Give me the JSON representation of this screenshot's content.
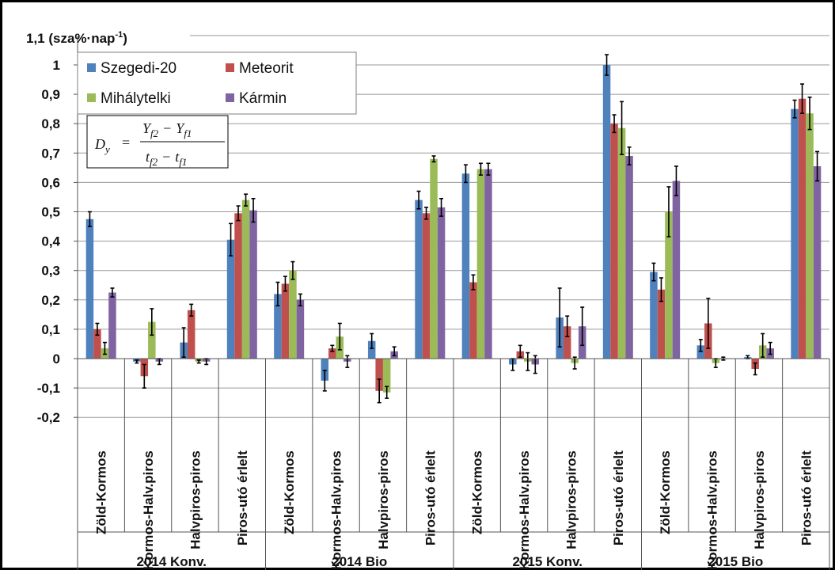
{
  "chart_data": {
    "type": "bar",
    "ylabel": "1,1 (sza%·nap",
    "ylabel_superscript": "-1",
    "ylabel_close": ")",
    "ylim": [
      -0.2,
      1.1
    ],
    "yticks": [
      -0.2,
      -0.1,
      0,
      0.1,
      0.2,
      0.3,
      0.4,
      0.5,
      0.6,
      0.7,
      0.8,
      0.9,
      1
    ],
    "ytick_labels": [
      "-0,2",
      "-0,1",
      "0",
      "0,1",
      "0,2",
      "0,3",
      "0,4",
      "0,5",
      "0,6",
      "0,7",
      "0,8",
      "0,9",
      "1"
    ],
    "grid": true,
    "legend_position": "top-left",
    "groups": [
      {
        "label": "2014 Konv.",
        "categories": [
          "Zöld-Kormos",
          "Kormos-Halv.piros",
          "Halvpiros-piros",
          "Piros-utó érlelt"
        ]
      },
      {
        "label": "2014 Bio",
        "categories": [
          "Zöld-Kormos",
          "Kormos-Halv.piros",
          "Halvpiros-piros",
          "Piros-utó érlelt"
        ]
      },
      {
        "label": "2015 Konv.",
        "categories": [
          "Zöld-Kormos",
          "Kormos-Halv.piros",
          "Halvpiros-piros",
          "Piros-utó érlelt"
        ]
      },
      {
        "label": "2015 Bio",
        "categories": [
          "Zöld-Kormos",
          "Kormos-Halv.piros",
          "Halvpiros-piros",
          "Piros-utó érlelt"
        ]
      }
    ],
    "series": [
      {
        "name": "Szegedi-20",
        "color": "#4f81bd",
        "values": [
          0.475,
          -0.01,
          0.055,
          0.405,
          0.22,
          -0.075,
          0.06,
          0.54,
          0.63,
          -0.02,
          0.14,
          1.0,
          0.295,
          0.045,
          0.005,
          0.85
        ],
        "errors": [
          0.025,
          0.005,
          0.05,
          0.055,
          0.04,
          0.035,
          0.025,
          0.03,
          0.03,
          0.02,
          0.1,
          0.035,
          0.03,
          0.02,
          0.005,
          0.03
        ]
      },
      {
        "name": "Meteorit",
        "color": "#c0504d",
        "values": [
          0.1,
          -0.06,
          0.165,
          0.495,
          0.255,
          0.035,
          -0.11,
          0.495,
          0.26,
          0.025,
          0.11,
          0.8,
          0.235,
          0.12,
          -0.035,
          0.885
        ],
        "errors": [
          0.02,
          0.04,
          0.02,
          0.025,
          0.025,
          0.01,
          0.04,
          0.02,
          0.025,
          0.02,
          0.035,
          0.03,
          0.04,
          0.085,
          0.02,
          0.05
        ]
      },
      {
        "name": "Mihálytelki",
        "color": "#9bbb59",
        "values": [
          0.035,
          0.125,
          -0.01,
          0.54,
          0.3,
          0.075,
          -0.115,
          0.68,
          0.645,
          -0.01,
          -0.015,
          0.785,
          0.5,
          -0.015,
          0.045,
          0.835
        ],
        "errors": [
          0.02,
          0.045,
          0.005,
          0.02,
          0.03,
          0.045,
          0.02,
          0.01,
          0.02,
          0.03,
          0.02,
          0.09,
          0.085,
          0.015,
          0.04,
          0.055
        ]
      },
      {
        "name": "Kármin",
        "color": "#8064a2",
        "values": [
          0.225,
          -0.01,
          -0.01,
          0.505,
          0.2,
          -0.01,
          0.025,
          0.515,
          0.645,
          -0.02,
          0.11,
          0.69,
          0.605,
          0.0,
          0.035,
          0.655
        ],
        "errors": [
          0.015,
          0.01,
          0.01,
          0.04,
          0.02,
          0.02,
          0.015,
          0.03,
          0.02,
          0.03,
          0.065,
          0.03,
          0.05,
          0.005,
          0.02,
          0.05
        ]
      }
    ]
  },
  "formula": {
    "lhs": "D",
    "lhs_sub": "y",
    "eq": "=",
    "num": "Y",
    "num_sub1": "f2",
    "minus": "−",
    "num_sub2": "f1",
    "den": "t",
    "den_sub1": "f2",
    "den_sub2": "f1"
  }
}
